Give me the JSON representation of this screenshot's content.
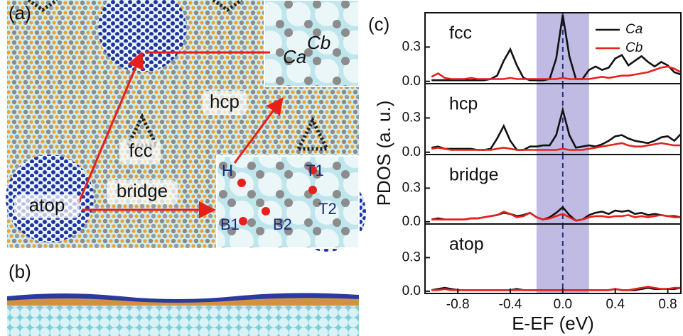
{
  "panels": {
    "a": {
      "label": "(a)",
      "sites": [
        "fcc",
        "hcp",
        "bridge",
        "atop"
      ],
      "inset_top": [
        "Ca",
        "Cb"
      ],
      "inset_bottom": [
        "H",
        "T1",
        "B1",
        "B2",
        "T2"
      ]
    },
    "b": {
      "label": "(b)"
    },
    "c": {
      "label": "(c)",
      "ylabel": "PDOS (a. u.)",
      "xlabel": "E-EF (eV)"
    }
  },
  "chart_data": [
    {
      "type": "line",
      "title": "fcc",
      "xlim": [
        -1.05,
        0.9
      ],
      "ylim": [
        -0.02,
        0.6
      ],
      "yticks": [
        {
          "value": 0,
          "label": "0.0"
        },
        0.3
      ],
      "band": [
        -0.2,
        0.2
      ],
      "vline": 0,
      "legend": "upper right",
      "x": [
        -1.0,
        -0.95,
        -0.9,
        -0.85,
        -0.8,
        -0.75,
        -0.7,
        -0.65,
        -0.6,
        -0.55,
        -0.5,
        -0.45,
        -0.4,
        -0.35,
        -0.3,
        -0.25,
        -0.2,
        -0.15,
        -0.1,
        -0.05,
        0,
        0.05,
        0.1,
        0.15,
        0.2,
        0.25,
        0.3,
        0.35,
        0.4,
        0.45,
        0.5,
        0.55,
        0.6,
        0.65,
        0.7,
        0.75,
        0.8,
        0.85,
        0.9
      ],
      "series": [
        {
          "name": "Ca",
          "color": "#111111",
          "values": [
            0.01,
            0.01,
            0.01,
            0.01,
            0.01,
            0.01,
            0.01,
            0.01,
            0.01,
            0.02,
            0.05,
            0.18,
            0.28,
            0.14,
            0.03,
            0.01,
            0.01,
            0.01,
            0.02,
            0.2,
            0.58,
            0.22,
            0.02,
            0.02,
            0.1,
            0.13,
            0.1,
            0.12,
            0.2,
            0.23,
            0.14,
            0.18,
            0.22,
            0.17,
            0.13,
            0.17,
            0.14,
            0.08,
            0.06
          ]
        },
        {
          "name": "Cb",
          "color": "#e8201c",
          "values": [
            0.04,
            0.07,
            0.03,
            0.02,
            0.02,
            0.02,
            0.03,
            0.02,
            0.02,
            0.02,
            0.02,
            0.02,
            0.03,
            0.02,
            0.02,
            0.02,
            0.02,
            0.02,
            0.02,
            0.02,
            0.03,
            0.02,
            0.02,
            0.02,
            0.02,
            0.03,
            0.04,
            0.03,
            0.04,
            0.05,
            0.05,
            0.06,
            0.07,
            0.08,
            0.1,
            0.12,
            0.13,
            0.11,
            0.08
          ]
        }
      ]
    },
    {
      "type": "line",
      "title": "hcp",
      "xlim": [
        -1.05,
        0.9
      ],
      "ylim": [
        -0.02,
        0.6
      ],
      "yticks": [
        {
          "value": 0,
          "label": "0.0"
        },
        0.3
      ],
      "band": [
        -0.2,
        0.2
      ],
      "vline": 0,
      "x": [
        -1.0,
        -0.95,
        -0.9,
        -0.85,
        -0.8,
        -0.75,
        -0.7,
        -0.65,
        -0.6,
        -0.55,
        -0.5,
        -0.45,
        -0.4,
        -0.35,
        -0.3,
        -0.25,
        -0.2,
        -0.15,
        -0.1,
        -0.05,
        0,
        0.05,
        0.1,
        0.15,
        0.2,
        0.25,
        0.3,
        0.35,
        0.4,
        0.45,
        0.5,
        0.55,
        0.6,
        0.65,
        0.7,
        0.75,
        0.8,
        0.85,
        0.9
      ],
      "series": [
        {
          "color": "#111111",
          "values": [
            0.04,
            0.05,
            0.03,
            0.03,
            0.03,
            0.03,
            0.03,
            0.02,
            0.02,
            0.03,
            0.12,
            0.23,
            0.1,
            0.02,
            0.02,
            0.05,
            0.05,
            0.06,
            0.06,
            0.15,
            0.37,
            0.15,
            0.04,
            0.05,
            0.06,
            0.05,
            0.07,
            0.1,
            0.14,
            0.15,
            0.12,
            0.1,
            0.09,
            0.08,
            0.1,
            0.13,
            0.14,
            0.1,
            0.16
          ]
        },
        {
          "color": "#e8201c",
          "values": [
            0.03,
            0.04,
            0.03,
            0.02,
            0.02,
            0.02,
            0.02,
            0.02,
            0.02,
            0.02,
            0.03,
            0.04,
            0.03,
            0.02,
            0.02,
            0.02,
            0.02,
            0.02,
            0.02,
            0.02,
            0.03,
            0.02,
            0.02,
            0.02,
            0.03,
            0.04,
            0.05,
            0.06,
            0.07,
            0.08,
            0.06,
            0.05,
            0.05,
            0.06,
            0.07,
            0.08,
            0.07,
            0.06,
            0.06
          ]
        }
      ]
    },
    {
      "type": "line",
      "title": "bridge",
      "xlim": [
        -1.05,
        0.9
      ],
      "ylim": [
        -0.02,
        0.6
      ],
      "yticks": [
        {
          "value": 0,
          "label": "0.0"
        },
        0.3
      ],
      "band": [
        -0.2,
        0.2
      ],
      "vline": 0,
      "x": [
        -1.0,
        -0.95,
        -0.9,
        -0.85,
        -0.8,
        -0.75,
        -0.7,
        -0.65,
        -0.6,
        -0.55,
        -0.5,
        -0.45,
        -0.4,
        -0.35,
        -0.3,
        -0.25,
        -0.2,
        -0.15,
        -0.1,
        -0.05,
        0,
        0.05,
        0.1,
        0.15,
        0.2,
        0.25,
        0.3,
        0.35,
        0.4,
        0.45,
        0.5,
        0.55,
        0.6,
        0.65,
        0.7,
        0.75,
        0.8,
        0.85,
        0.9
      ],
      "series": [
        {
          "color": "#111111",
          "values": [
            0.02,
            0.03,
            0.02,
            0.02,
            0.02,
            0.02,
            0.03,
            0.03,
            0.04,
            0.05,
            0.06,
            0.08,
            0.07,
            0.05,
            0.06,
            0.08,
            0.04,
            0.02,
            0.04,
            0.08,
            0.13,
            0.06,
            0.01,
            0.02,
            0.06,
            0.08,
            0.09,
            0.07,
            0.1,
            0.09,
            0.1,
            0.07,
            0.08,
            0.06,
            0.07,
            0.06,
            0.05,
            0.05,
            0.04
          ]
        },
        {
          "color": "#e8201c",
          "values": [
            0.02,
            0.02,
            0.02,
            0.02,
            0.02,
            0.02,
            0.03,
            0.03,
            0.04,
            0.05,
            0.06,
            0.09,
            0.07,
            0.04,
            0.05,
            0.08,
            0.04,
            0.02,
            0.03,
            0.05,
            0.07,
            0.04,
            0.01,
            0.02,
            0.04,
            0.05,
            0.05,
            0.04,
            0.05,
            0.05,
            0.06,
            0.04,
            0.05,
            0.04,
            0.05,
            0.06,
            0.05,
            0.04,
            0.04
          ]
        }
      ]
    },
    {
      "type": "line",
      "title": "atop",
      "xlim": [
        -1.05,
        0.9
      ],
      "ylim": [
        -0.02,
        0.6
      ],
      "yticks": [
        {
          "value": 0,
          "label": "0.0"
        },
        0.3
      ],
      "band": [
        -0.2,
        0.2
      ],
      "vline": 0,
      "xticks": [
        -0.8,
        -0.4,
        {
          "value": 0,
          "label": "0.0"
        },
        0.4,
        0.8
      ],
      "x": [
        -1.0,
        -0.95,
        -0.9,
        -0.85,
        -0.8,
        -0.75,
        -0.7,
        -0.65,
        -0.6,
        -0.55,
        -0.5,
        -0.45,
        -0.4,
        -0.35,
        -0.3,
        -0.25,
        -0.2,
        -0.15,
        -0.1,
        -0.05,
        0,
        0.05,
        0.1,
        0.15,
        0.2,
        0.25,
        0.3,
        0.35,
        0.4,
        0.45,
        0.5,
        0.55,
        0.6,
        0.65,
        0.7,
        0.75,
        0.8,
        0.85,
        0.9
      ],
      "series": [
        {
          "color": "#111111",
          "values": [
            0.01,
            0.02,
            0.03,
            0.02,
            0.01,
            0.01,
            0.01,
            0.01,
            0.01,
            0.01,
            0.01,
            0.01,
            0.01,
            0.02,
            0.01,
            0.01,
            0.01,
            0.01,
            0.01,
            0.01,
            0.01,
            0.01,
            0.01,
            0.01,
            0.01,
            0.01,
            0.01,
            0.01,
            0.02,
            0.01,
            0.01,
            0.01,
            0.02,
            0.03,
            0.02,
            0.02,
            0.02,
            0.02,
            0.03
          ]
        },
        {
          "color": "#e8201c",
          "values": [
            0.01,
            0.01,
            0.02,
            0.01,
            0.01,
            0.01,
            0.01,
            0.01,
            0.01,
            0.01,
            0.01,
            0.01,
            0.01,
            0.01,
            0.01,
            0.01,
            0.01,
            0.01,
            0.01,
            0.01,
            0.01,
            0.01,
            0.01,
            0.01,
            0.01,
            0.01,
            0.01,
            0.01,
            0.02,
            0.01,
            0.01,
            0.02,
            0.03,
            0.04,
            0.03,
            0.02,
            0.02,
            0.03,
            0.03
          ]
        }
      ]
    }
  ]
}
